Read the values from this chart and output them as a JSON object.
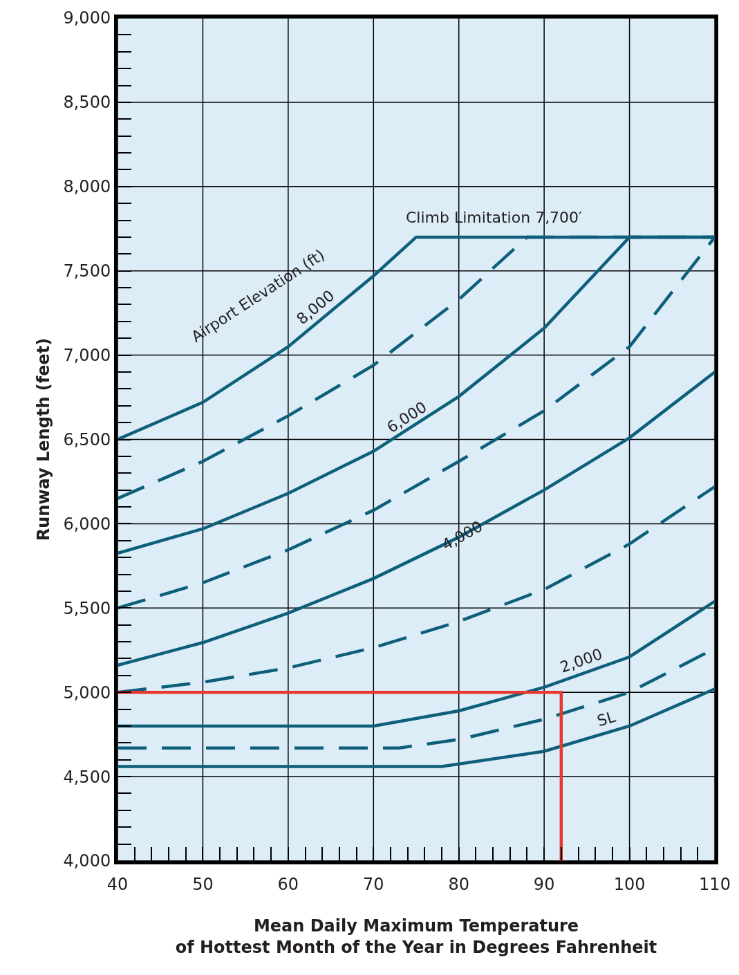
{
  "chart_data": {
    "type": "line",
    "xlabel": "Mean Daily Maximum Temperature\nof Hottest Month of the Year in Degrees Fahrenheit",
    "ylabel": "Runway Length (feet)",
    "xlim": [
      40,
      110
    ],
    "ylim": [
      4000,
      9000
    ],
    "xticks": [
      40,
      50,
      60,
      70,
      80,
      90,
      100,
      110
    ],
    "yticks": [
      {
        "value": 4000,
        "label": "4,000"
      },
      {
        "value": 4500,
        "label": "4,500"
      },
      {
        "value": 5000,
        "label": "5,000"
      },
      {
        "value": 5500,
        "label": "5,500"
      },
      {
        "value": 6000,
        "label": "6,000"
      },
      {
        "value": 6500,
        "label": "6,500"
      },
      {
        "value": 7000,
        "label": "7,000"
      },
      {
        "value": 7500,
        "label": "7,500"
      },
      {
        "value": 8000,
        "label": "8,000"
      },
      {
        "value": 8500,
        "label": "8,500"
      },
      {
        "value": 9000,
        "label": "9,000"
      }
    ],
    "grid": true,
    "legend": false,
    "marker": "none",
    "series": [
      {
        "name": "8,000",
        "color": "#0e5f7a",
        "line_style": "solid",
        "x": [
          40,
          50,
          60,
          70,
          75,
          110
        ],
        "values": [
          6500,
          6720,
          7050,
          7470,
          7700,
          7700
        ]
      },
      {
        "color": "#0e5f7a",
        "line_style": "dashed",
        "x": [
          40,
          50,
          60,
          70,
          80,
          88,
          110
        ],
        "values": [
          6150,
          6370,
          6640,
          6940,
          7330,
          7700,
          7700
        ]
      },
      {
        "name": "6,000",
        "color": "#0e5f7a",
        "line_style": "solid",
        "x": [
          40,
          50,
          60,
          70,
          80,
          90,
          100,
          110
        ],
        "values": [
          5825,
          5970,
          6180,
          6430,
          6755,
          7160,
          7700,
          7700
        ]
      },
      {
        "color": "#0e5f7a",
        "line_style": "dashed",
        "x": [
          40,
          50,
          60,
          70,
          80,
          90,
          100,
          110
        ],
        "values": [
          5500,
          5650,
          5845,
          6080,
          6370,
          6670,
          7050,
          7700
        ]
      },
      {
        "name": "4,000",
        "color": "#0e5f7a",
        "line_style": "solid",
        "x": [
          40,
          50,
          60,
          70,
          80,
          90,
          100,
          110
        ],
        "values": [
          5160,
          5295,
          5470,
          5675,
          5920,
          6200,
          6510,
          6900
        ]
      },
      {
        "color": "#0e5f7a",
        "line_style": "dashed",
        "x": [
          40,
          50,
          60,
          70,
          80,
          90,
          100,
          110
        ],
        "values": [
          5000,
          5060,
          5145,
          5265,
          5420,
          5610,
          5880,
          6220
        ]
      },
      {
        "name": "2,000",
        "color": "#0e5f7a",
        "line_style": "solid",
        "x": [
          40,
          70,
          80,
          90,
          100,
          110
        ],
        "values": [
          4800,
          4800,
          4890,
          5030,
          5210,
          5540
        ]
      },
      {
        "color": "#0e5f7a",
        "line_style": "dashed",
        "x": [
          40,
          73,
          80,
          90,
          100,
          110
        ],
        "values": [
          4670,
          4670,
          4720,
          4840,
          5000,
          5260
        ]
      },
      {
        "name": "SL",
        "color": "#0e5f7a",
        "line_style": "solid",
        "x": [
          40,
          78,
          90,
          100,
          110
        ],
        "values": [
          4560,
          4560,
          4650,
          4800,
          5020
        ]
      },
      {
        "color": "#e8372c",
        "line_style": "solid",
        "x": [
          40,
          92,
          92
        ],
        "values": [
          5000,
          5000,
          4000
        ]
      }
    ],
    "annotations": [
      "Airport Elevation (ft)",
      "Climb Limitation 7,700′"
    ]
  }
}
